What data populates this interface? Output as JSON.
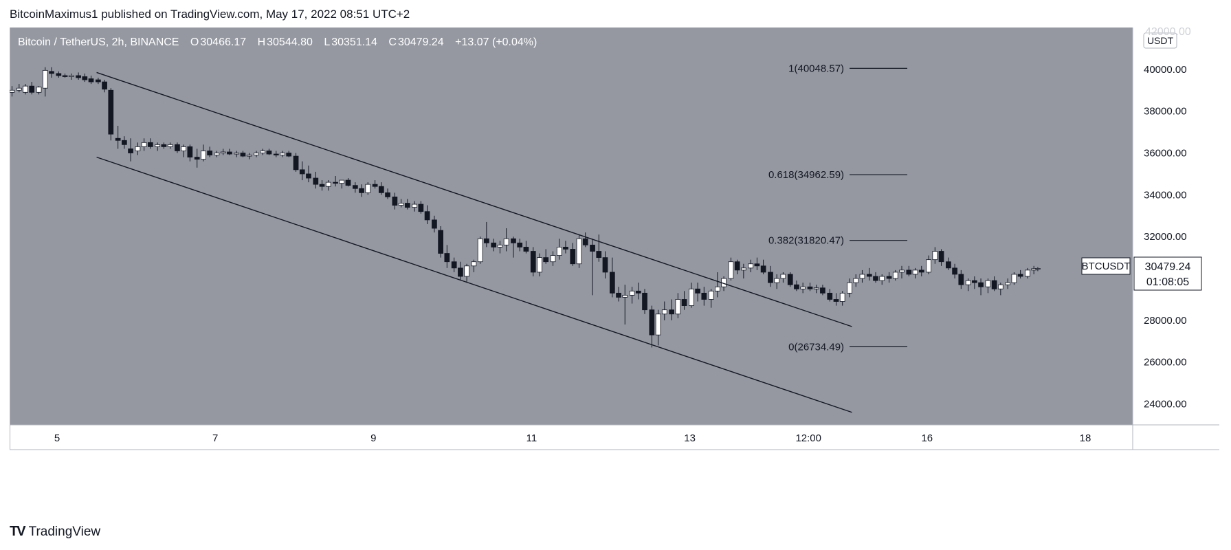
{
  "header": {
    "caption": "BitcoinMaximus1 published on TradingView.com, May 17, 2022 08:51 UTC+2"
  },
  "legend": {
    "symbol": "Bitcoin / TetherUS, 2h, BINANCE",
    "open_label": "O",
    "open": "30466.17",
    "high_label": "H",
    "high": "30544.80",
    "low_label": "L",
    "low": "30351.14",
    "close_label": "C",
    "close": "30479.24",
    "change": "+13.07 (+0.04%)"
  },
  "price_axis": {
    "currency_label": "USDT",
    "top_partial_label": "42000.00",
    "ticks": [
      "40000.00",
      "38000.00",
      "36000.00",
      "34000.00",
      "32000.00",
      "30000.00",
      "28000.00",
      "26000.00",
      "24000.00"
    ]
  },
  "last_price": {
    "ticker": "BTCUSDT",
    "price": "30479.24",
    "countdown": "01:08:05"
  },
  "time_axis": {
    "ticks": [
      "5",
      "7",
      "9",
      "11",
      "13",
      "12:00",
      "16",
      "18"
    ]
  },
  "fibonacci": [
    {
      "level": "1(40048.57)",
      "value": 40048.57
    },
    {
      "level": "0.618(34962.59)",
      "value": 34962.59
    },
    {
      "level": "0.382(31820.47)",
      "value": 31820.47
    },
    {
      "level": "0(26734.49)",
      "value": 26734.49
    }
  ],
  "colors": {
    "plot_bg": "#9598a1",
    "bull_candle": "#ffffff",
    "bear_candle": "#131722",
    "line": "#131722"
  },
  "footer": {
    "brand_mark": "TV",
    "brand": "TradingView"
  },
  "chart_data": {
    "type": "candlestick",
    "interval": "2h",
    "ylim": [
      23000,
      42000
    ],
    "xlim": [
      4.4,
      18.6
    ],
    "x_tick_values": [
      5,
      7,
      9,
      11,
      13,
      14.5,
      16,
      18
    ],
    "channel": [
      {
        "name": "",
        "x": [
          5.5,
          15.05
        ],
        "y": [
          39850,
          27700
        ]
      },
      {
        "name": "",
        "x": [
          5.5,
          15.05
        ],
        "y": [
          35800,
          23600
        ]
      }
    ],
    "candles": [
      [
        4.35,
        38300,
        39100,
        38200,
        38900
      ],
      [
        4.43,
        38900,
        39200,
        38700,
        39000
      ],
      [
        4.52,
        39000,
        39300,
        38900,
        39100
      ],
      [
        4.6,
        38900,
        39300,
        38800,
        39200
      ],
      [
        4.68,
        39200,
        39400,
        38800,
        38900
      ],
      [
        4.77,
        38900,
        39200,
        38800,
        39150
      ],
      [
        4.85,
        39100,
        40100,
        38700,
        39950
      ],
      [
        4.93,
        39900,
        40100,
        39600,
        39800
      ],
      [
        5.02,
        39800,
        39900,
        39600,
        39700
      ],
      [
        5.1,
        39700,
        39800,
        39600,
        39650
      ],
      [
        5.18,
        39650,
        39800,
        39500,
        39700
      ],
      [
        5.27,
        39700,
        39850,
        39500,
        39600
      ],
      [
        5.35,
        39650,
        39800,
        39400,
        39500
      ],
      [
        5.43,
        39550,
        39700,
        39300,
        39400
      ],
      [
        5.52,
        39500,
        39600,
        39300,
        39400
      ],
      [
        5.6,
        39400,
        39500,
        38900,
        39050
      ],
      [
        5.68,
        39000,
        39100,
        36600,
        36900
      ],
      [
        5.77,
        36700,
        37300,
        36200,
        36600
      ],
      [
        5.85,
        36600,
        36800,
        36200,
        36400
      ],
      [
        5.93,
        36200,
        36700,
        35600,
        36000
      ],
      [
        6.02,
        36100,
        36500,
        35900,
        36300
      ],
      [
        6.1,
        36300,
        36700,
        36100,
        36500
      ],
      [
        6.18,
        36500,
        36700,
        36200,
        36300
      ],
      [
        6.27,
        36300,
        36500,
        36100,
        36400
      ],
      [
        6.35,
        36400,
        36500,
        36200,
        36300
      ],
      [
        6.43,
        36300,
        36500,
        36200,
        36400
      ],
      [
        6.52,
        36400,
        36500,
        36000,
        36100
      ],
      [
        6.6,
        36100,
        36400,
        35800,
        36300
      ],
      [
        6.68,
        36300,
        36400,
        35600,
        35800
      ],
      [
        6.77,
        35800,
        36200,
        35300,
        35700
      ],
      [
        6.85,
        35700,
        36400,
        35600,
        36100
      ],
      [
        6.93,
        36100,
        36300,
        35800,
        35900
      ],
      [
        7.02,
        35900,
        36100,
        35800,
        36000
      ],
      [
        7.1,
        36000,
        36200,
        35900,
        36050
      ],
      [
        7.18,
        36050,
        36200,
        35900,
        35950
      ],
      [
        7.27,
        35950,
        36100,
        35800,
        36000
      ],
      [
        7.35,
        36000,
        36100,
        35800,
        35850
      ],
      [
        7.43,
        35850,
        36000,
        35700,
        35900
      ],
      [
        7.52,
        35900,
        36100,
        35800,
        36000
      ],
      [
        7.6,
        36000,
        36200,
        35900,
        36100
      ],
      [
        7.68,
        36100,
        36200,
        35900,
        35950
      ],
      [
        7.77,
        35950,
        36100,
        35800,
        35900
      ],
      [
        7.85,
        35900,
        36100,
        35800,
        36000
      ],
      [
        7.93,
        36000,
        36100,
        35800,
        35850
      ],
      [
        8.02,
        35850,
        36000,
        35100,
        35200
      ],
      [
        8.1,
        35200,
        35600,
        34700,
        35000
      ],
      [
        8.18,
        35000,
        35400,
        34600,
        34800
      ],
      [
        8.27,
        34800,
        35100,
        34300,
        34500
      ],
      [
        8.35,
        34500,
        34700,
        34200,
        34400
      ],
      [
        8.43,
        34400,
        34700,
        34200,
        34600
      ],
      [
        8.52,
        34600,
        34900,
        34400,
        34550
      ],
      [
        8.6,
        34550,
        34700,
        34300,
        34700
      ],
      [
        8.68,
        34700,
        34800,
        34400,
        34450
      ],
      [
        8.77,
        34450,
        34600,
        34100,
        34300
      ],
      [
        8.85,
        34300,
        34500,
        33900,
        34100
      ],
      [
        8.93,
        34100,
        34600,
        34000,
        34500
      ],
      [
        9.02,
        34500,
        34700,
        34300,
        34400
      ],
      [
        9.1,
        34400,
        34600,
        34000,
        34100
      ],
      [
        9.18,
        34100,
        34300,
        33800,
        33900
      ],
      [
        9.27,
        33900,
        34100,
        33300,
        33500
      ],
      [
        9.35,
        33500,
        33800,
        33400,
        33600
      ],
      [
        9.43,
        33600,
        33800,
        33300,
        33400
      ],
      [
        9.52,
        33400,
        33700,
        33200,
        33550
      ],
      [
        9.6,
        33550,
        33700,
        33100,
        33200
      ],
      [
        9.68,
        33200,
        33500,
        32600,
        32800
      ],
      [
        9.77,
        32800,
        33000,
        32200,
        32400
      ],
      [
        9.85,
        32300,
        32500,
        31000,
        31200
      ],
      [
        9.93,
        31200,
        31600,
        30500,
        30800
      ],
      [
        10.02,
        30800,
        31000,
        30300,
        30500
      ],
      [
        10.1,
        30500,
        30800,
        29900,
        30100
      ],
      [
        10.18,
        30100,
        30700,
        29800,
        30600
      ],
      [
        10.27,
        30600,
        30900,
        30300,
        30800
      ],
      [
        10.35,
        30800,
        32000,
        30700,
        31900
      ],
      [
        10.43,
        31900,
        32700,
        31500,
        31700
      ],
      [
        10.52,
        31700,
        31900,
        31300,
        31500
      ],
      [
        10.6,
        31500,
        31800,
        31200,
        31600
      ],
      [
        10.68,
        31600,
        32400,
        31300,
        31900
      ],
      [
        10.77,
        31900,
        32000,
        31000,
        31700
      ],
      [
        10.85,
        31700,
        31900,
        31300,
        31500
      ],
      [
        10.93,
        31500,
        31800,
        31200,
        31300
      ],
      [
        11.02,
        31300,
        31500,
        30100,
        30300
      ],
      [
        11.1,
        30300,
        31200,
        30100,
        31000
      ],
      [
        11.18,
        31000,
        31400,
        30700,
        30800
      ],
      [
        11.27,
        30800,
        31300,
        30600,
        31100
      ],
      [
        11.35,
        31100,
        31900,
        30900,
        31500
      ],
      [
        11.43,
        31500,
        31800,
        31200,
        31400
      ],
      [
        11.52,
        31400,
        31700,
        30600,
        30700
      ],
      [
        11.6,
        30700,
        32100,
        30500,
        31900
      ],
      [
        11.68,
        31900,
        32200,
        31500,
        31600
      ],
      [
        11.77,
        31600,
        31900,
        29200,
        31300
      ],
      [
        11.85,
        31300,
        32100,
        30800,
        31000
      ],
      [
        11.93,
        31000,
        31300,
        30000,
        30300
      ],
      [
        12.02,
        30300,
        31000,
        29100,
        29300
      ],
      [
        12.1,
        29300,
        29600,
        28900,
        29100
      ],
      [
        12.18,
        29100,
        29700,
        27800,
        29200
      ],
      [
        12.27,
        29200,
        29600,
        28800,
        29400
      ],
      [
        12.35,
        29400,
        29800,
        29000,
        29300
      ],
      [
        12.43,
        29300,
        29500,
        28300,
        28500
      ],
      [
        12.52,
        28500,
        28700,
        26700,
        27300
      ],
      [
        12.6,
        27300,
        28500,
        26800,
        28300
      ],
      [
        12.68,
        28300,
        28900,
        28000,
        28500
      ],
      [
        12.77,
        28500,
        29000,
        28000,
        28300
      ],
      [
        12.85,
        28300,
        29300,
        28100,
        29000
      ],
      [
        12.93,
        29000,
        29400,
        28500,
        28700
      ],
      [
        13.02,
        28700,
        29800,
        28600,
        29500
      ],
      [
        13.1,
        29500,
        29800,
        28900,
        29300
      ],
      [
        13.18,
        29300,
        29600,
        28700,
        29000
      ],
      [
        13.27,
        29000,
        29500,
        28600,
        29400
      ],
      [
        13.35,
        29400,
        30300,
        29100,
        29600
      ],
      [
        13.43,
        29600,
        30100,
        29400,
        30000
      ],
      [
        13.52,
        30000,
        31000,
        29900,
        30800
      ],
      [
        13.6,
        30800,
        30900,
        30200,
        30400
      ],
      [
        13.68,
        30400,
        30700,
        30000,
        30500
      ],
      [
        13.77,
        30500,
        30900,
        30300,
        30700
      ],
      [
        13.85,
        30700,
        31000,
        30400,
        30600
      ],
      [
        13.93,
        30600,
        30900,
        30200,
        30300
      ],
      [
        14.02,
        30300,
        30600,
        29600,
        29800
      ],
      [
        14.1,
        29800,
        30200,
        29500,
        30000
      ],
      [
        14.18,
        30000,
        30300,
        29800,
        30200
      ],
      [
        14.27,
        30200,
        30300,
        29600,
        29700
      ],
      [
        14.35,
        29700,
        29900,
        29400,
        29500
      ],
      [
        14.43,
        29500,
        29800,
        29300,
        29600
      ],
      [
        14.52,
        29600,
        29800,
        29400,
        29500
      ],
      [
        14.6,
        29500,
        29700,
        29300,
        29550
      ],
      [
        14.68,
        29550,
        29700,
        29200,
        29300
      ],
      [
        14.77,
        29300,
        29500,
        28900,
        29000
      ],
      [
        14.85,
        29000,
        29300,
        28700,
        28900
      ],
      [
        14.93,
        28900,
        29400,
        28700,
        29300
      ],
      [
        15.02,
        29300,
        30000,
        29100,
        29800
      ],
      [
        15.1,
        29800,
        30200,
        29600,
        30000
      ],
      [
        15.18,
        30000,
        30400,
        29800,
        30200
      ],
      [
        15.27,
        30200,
        30500,
        29900,
        30100
      ],
      [
        15.35,
        30100,
        30300,
        29800,
        29900
      ],
      [
        15.43,
        29900,
        30200,
        29700,
        30100
      ],
      [
        15.52,
        30100,
        30300,
        29800,
        30000
      ],
      [
        15.6,
        30000,
        30400,
        29900,
        30300
      ],
      [
        15.68,
        30300,
        30600,
        30000,
        30400
      ],
      [
        15.77,
        30400,
        30600,
        30100,
        30200
      ],
      [
        15.85,
        30200,
        30500,
        30000,
        30400
      ],
      [
        15.93,
        30400,
        30600,
        30100,
        30300
      ],
      [
        16.02,
        30300,
        31100,
        30200,
        30900
      ],
      [
        16.1,
        30900,
        31500,
        30700,
        31300
      ],
      [
        16.18,
        31300,
        31400,
        30600,
        30800
      ],
      [
        16.27,
        30800,
        31000,
        30400,
        30500
      ],
      [
        16.35,
        30500,
        30700,
        30000,
        30200
      ],
      [
        16.43,
        30200,
        30400,
        29500,
        29700
      ],
      [
        16.52,
        29700,
        30000,
        29400,
        29900
      ],
      [
        16.6,
        29900,
        30100,
        29500,
        29800
      ],
      [
        16.68,
        29800,
        30000,
        29200,
        29600
      ],
      [
        16.77,
        29600,
        30000,
        29300,
        29900
      ],
      [
        16.85,
        29900,
        30100,
        29400,
        29500
      ],
      [
        16.93,
        29500,
        29800,
        29200,
        29700
      ],
      [
        17.02,
        29700,
        30000,
        29500,
        29800
      ],
      [
        17.1,
        29800,
        30300,
        29700,
        30200
      ],
      [
        17.18,
        30200,
        30400,
        30000,
        30100
      ],
      [
        17.27,
        30100,
        30500,
        30000,
        30400
      ],
      [
        17.35,
        30400,
        30600,
        30200,
        30466
      ],
      [
        17.4,
        30466,
        30545,
        30351,
        30479
      ]
    ]
  }
}
